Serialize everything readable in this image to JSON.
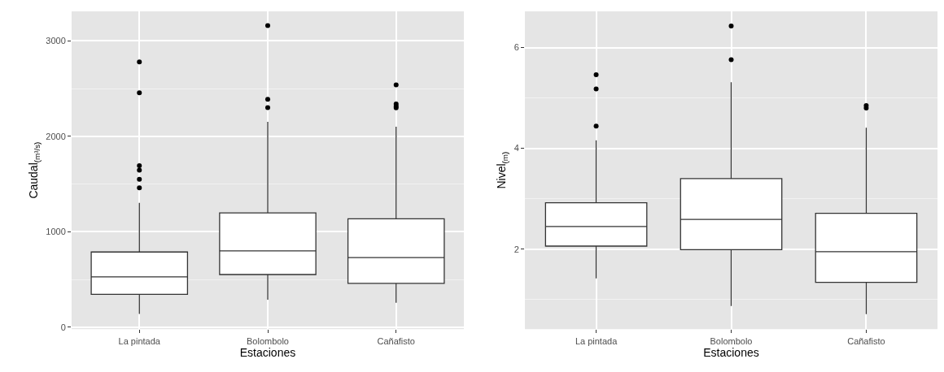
{
  "chart_data": [
    {
      "type": "box",
      "xlabel": "Estaciones",
      "ylabel": "Caudal$_{(m³/s)}$",
      "categories": [
        "La pintada",
        "Bolombolo",
        "Cañafisto"
      ],
      "ylim": [
        -20,
        3310
      ],
      "yticks": [
        0,
        1000,
        2000,
        3000
      ],
      "grid": true,
      "color": "#333333",
      "boxes": [
        {
          "low": 140,
          "q1": 345,
          "median": 528,
          "q3": 789,
          "high": 1304,
          "outliers": [
            2780,
            2457,
            1693,
            1646,
            1550,
            1460
          ]
        },
        {
          "low": 289,
          "q1": 553,
          "median": 801,
          "q3": 1199,
          "high": 2152,
          "outliers": [
            3161,
            2388,
            2301
          ]
        },
        {
          "low": 258,
          "q1": 460,
          "median": 730,
          "q3": 1137,
          "high": 2102,
          "outliers": [
            2540,
            2339,
            2317,
            2298
          ]
        }
      ]
    },
    {
      "type": "box",
      "xlabel": "Estaciones",
      "ylabel": "Nivel$_{(m)}$",
      "categories": [
        "La pintada",
        "Bolombolo",
        "Cañafisto"
      ],
      "ylim": [
        0.41,
        6.72
      ],
      "yticks": [
        2,
        4,
        6
      ],
      "grid": true,
      "color": "#333333",
      "boxes": [
        {
          "low": 1.42,
          "q1": 2.06,
          "median": 2.45,
          "q3": 2.92,
          "high": 4.16,
          "outliers": [
            5.46,
            5.18,
            4.44
          ]
        },
        {
          "low": 0.87,
          "q1": 1.99,
          "median": 2.59,
          "q3": 3.4,
          "high": 5.31,
          "outliers": [
            6.43,
            5.76
          ]
        },
        {
          "low": 0.71,
          "q1": 1.34,
          "median": 1.95,
          "q3": 2.71,
          "high": 4.41,
          "outliers": [
            4.85,
            4.8
          ]
        }
      ]
    }
  ]
}
